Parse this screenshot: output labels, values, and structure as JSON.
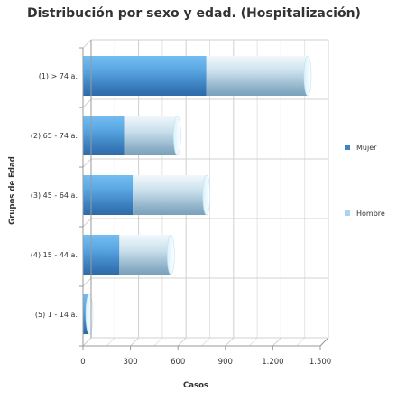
{
  "chart_data": {
    "type": "bar",
    "orientation": "horizontal",
    "stacked": true,
    "title": "Distribución por sexo y edad. (Hospitalización)",
    "xlabel": "Casos",
    "ylabel": "Grupos de Edad",
    "categories": [
      "(1) > 74 a.",
      "(2) 65 - 74 a.",
      "(3) 45 - 64 a.",
      "(4) 15 - 44 a.",
      "(5) 1 - 14 a."
    ],
    "series": [
      {
        "name": "Mujer",
        "color": "#3d86c6",
        "values": [
          780,
          260,
          315,
          230,
          30
        ]
      },
      {
        "name": "Hombre",
        "color": "#a9d4f2",
        "values": [
          640,
          335,
          465,
          325,
          10
        ]
      }
    ],
    "xlim": [
      0,
      1500
    ],
    "xticks": [
      0,
      300,
      600,
      900,
      1200,
      1500
    ],
    "xtick_labels": [
      "0",
      "300",
      "600",
      "900",
      "1.200",
      "1.500"
    ],
    "grid": true,
    "legend_position": "right"
  }
}
